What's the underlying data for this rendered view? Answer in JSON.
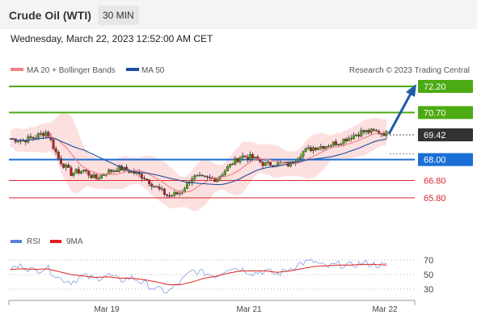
{
  "header": {
    "title": "Crude Oil (WTI)",
    "timeframe": "30 MIN",
    "datetime": "Wednesday, March 22, 2023 12:52:00 AM CET"
  },
  "chart_data": {
    "type": "candlestick",
    "instrument": "Crude Oil (WTI)",
    "interval": "30 MIN",
    "legend": [
      {
        "name": "MA 20 + Bollinger Bands",
        "color": "#f08080"
      },
      {
        "name": "MA 50",
        "color": "#1f4e9c"
      }
    ],
    "source": "Research © 2023 Trading Central",
    "current_price": "69.42",
    "levels": [
      {
        "label": "72.20",
        "value": 72.2,
        "kind": "resistance",
        "color": "#4caa12"
      },
      {
        "label": "70.70",
        "value": 70.7,
        "kind": "resistance",
        "color": "#4caa12"
      },
      {
        "label": "68.00",
        "value": 68.0,
        "kind": "pivot",
        "color": "#1a6fd6"
      },
      {
        "label": "66.80",
        "value": 66.8,
        "kind": "support",
        "color": "#d9262c"
      },
      {
        "label": "65.80",
        "value": 65.8,
        "kind": "support",
        "color": "#d9262c"
      }
    ],
    "x_labels": [
      "Mar 19",
      "Mar 21",
      "Mar 22"
    ],
    "price_path": [
      69.2,
      69.1,
      69.3,
      69.6,
      68.0,
      67.2,
      67.4,
      66.9,
      67.3,
      67.5,
      67.3,
      67.0,
      66.4,
      65.9,
      66.1,
      67.0,
      66.9,
      66.9,
      67.6,
      68.2,
      68.1,
      67.7,
      67.8,
      67.7,
      68.4,
      68.7,
      68.8,
      69.0,
      69.3,
      69.6,
      69.6,
      69.5
    ],
    "rsi": {
      "legend": [
        {
          "name": "RSI",
          "color": "#5b7fd6"
        },
        {
          "name": "9MA",
          "color": "#e0201b"
        }
      ],
      "levels": [
        "70",
        "50",
        "30"
      ],
      "path": [
        58,
        62,
        55,
        60,
        45,
        40,
        48,
        44,
        50,
        42,
        46,
        38,
        30,
        26,
        40,
        55,
        52,
        48,
        60,
        58,
        52,
        55,
        50,
        58,
        66,
        68,
        60,
        64,
        62,
        66,
        64,
        62
      ],
      "ma_path": [
        57,
        58,
        57,
        58,
        54,
        50,
        48,
        46,
        47,
        45,
        45,
        43,
        40,
        36,
        36,
        40,
        45,
        48,
        52,
        55,
        55,
        55,
        53,
        55,
        58,
        61,
        62,
        63,
        63,
        64,
        64,
        63
      ]
    }
  }
}
